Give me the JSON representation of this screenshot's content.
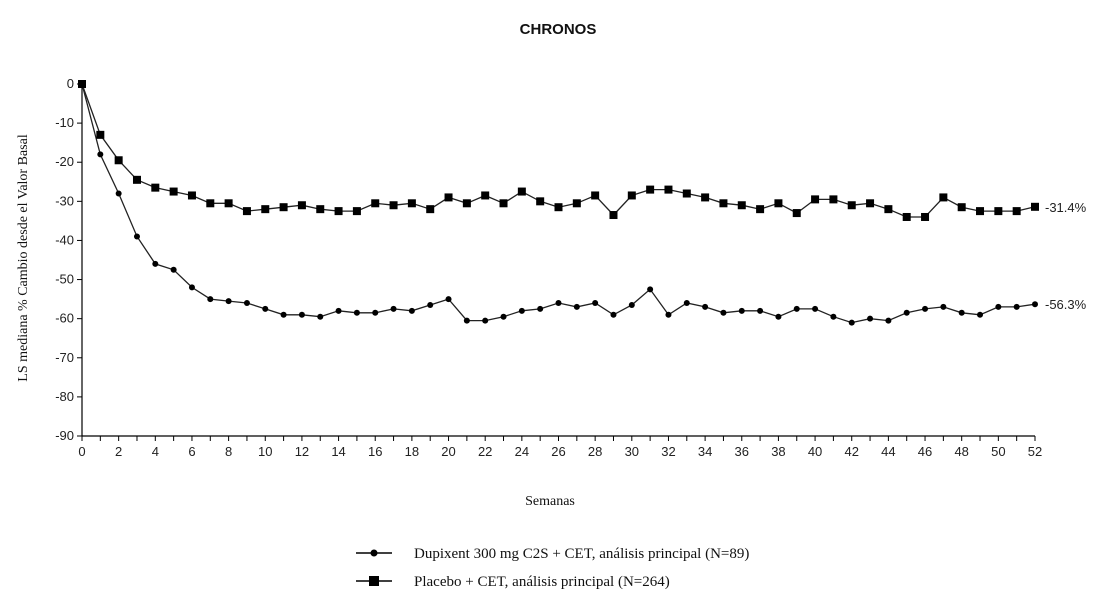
{
  "chart_data": {
    "type": "line",
    "title": "CHRONOS",
    "xlabel": "Semanas",
    "ylabel": "LS mediana % Cambio desde el Valor Basal",
    "xlim": [
      0,
      52
    ],
    "ylim": [
      -90,
      0
    ],
    "x_ticks": [
      0,
      2,
      4,
      6,
      8,
      10,
      12,
      14,
      16,
      18,
      20,
      22,
      24,
      26,
      28,
      30,
      32,
      34,
      36,
      38,
      40,
      42,
      44,
      46,
      48,
      50,
      52
    ],
    "y_ticks": [
      0,
      -10,
      -20,
      -30,
      -40,
      -50,
      -60,
      -70,
      -80,
      -90
    ],
    "grid": false,
    "legend_position": "bottom",
    "series": [
      {
        "name": "Dupixent 300 mg C2S + CET, análisis principal (N=89)",
        "marker": "circle",
        "end_label": "-56.3%",
        "x": [
          0,
          1,
          2,
          3,
          4,
          5,
          6,
          7,
          8,
          9,
          10,
          11,
          12,
          13,
          14,
          15,
          16,
          17,
          18,
          19,
          20,
          21,
          22,
          23,
          24,
          25,
          26,
          27,
          28,
          29,
          30,
          31,
          32,
          33,
          34,
          35,
          36,
          37,
          38,
          39,
          40,
          41,
          42,
          43,
          44,
          45,
          46,
          47,
          48,
          49,
          50,
          51,
          52
        ],
        "values": [
          0,
          -18,
          -28,
          -39,
          -46,
          -47.5,
          -52,
          -55,
          -55.5,
          -56,
          -57.5,
          -59,
          -59,
          -59.5,
          -58,
          -58.5,
          -58.5,
          -57.5,
          -58,
          -56.5,
          -55,
          -60.5,
          -60.5,
          -59.5,
          -58,
          -57.5,
          -56,
          -57,
          -56,
          -59,
          -56.5,
          -52.5,
          -59,
          -56,
          -57,
          -58.5,
          -58,
          -58,
          -59.5,
          -57.5,
          -57.5,
          -59.5,
          -61,
          -60,
          -60.5,
          -58.5,
          -57.5,
          -57,
          -58.5,
          -59,
          -57,
          -57,
          -56.3
        ]
      },
      {
        "name": "Placebo + CET, análisis principal (N=264)",
        "marker": "square",
        "end_label": "-31.4%",
        "x": [
          0,
          1,
          2,
          3,
          4,
          5,
          6,
          7,
          8,
          9,
          10,
          11,
          12,
          13,
          14,
          15,
          16,
          17,
          18,
          19,
          20,
          21,
          22,
          23,
          24,
          25,
          26,
          27,
          28,
          29,
          30,
          31,
          32,
          33,
          34,
          35,
          36,
          37,
          38,
          39,
          40,
          41,
          42,
          43,
          44,
          45,
          46,
          47,
          48,
          49,
          50,
          51,
          52
        ],
        "values": [
          0,
          -13,
          -19.5,
          -24.5,
          -26.5,
          -27.5,
          -28.5,
          -30.5,
          -30.5,
          -32.5,
          -32,
          -31.5,
          -31,
          -32,
          -32.5,
          -32.5,
          -30.5,
          -31,
          -30.5,
          -32,
          -29,
          -30.5,
          -28.5,
          -30.5,
          -27.5,
          -30,
          -31.5,
          -30.5,
          -28.5,
          -33.5,
          -28.5,
          -27,
          -27,
          -28,
          -29,
          -30.5,
          -31,
          -32,
          -30.5,
          -33,
          -29.5,
          -29.5,
          -31,
          -30.5,
          -32,
          -34,
          -34,
          -29,
          -31.5,
          -32.5,
          -32.5,
          -32.5,
          -31.4
        ]
      }
    ]
  }
}
